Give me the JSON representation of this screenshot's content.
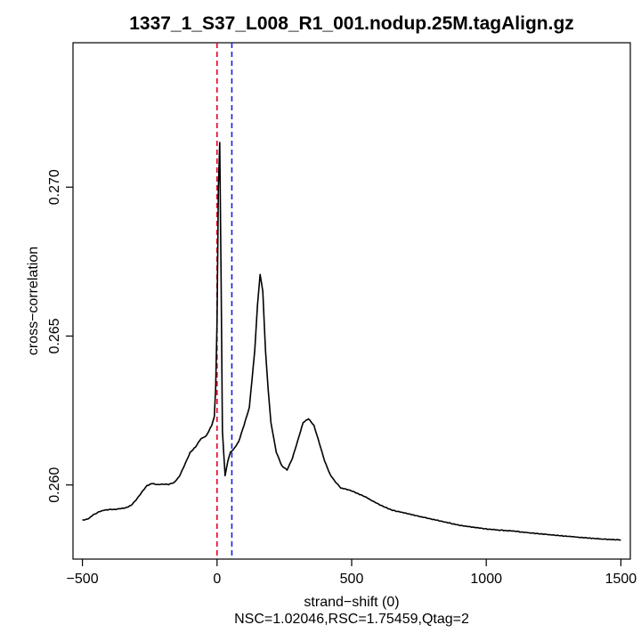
{
  "chart_data": {
    "type": "line",
    "title": "1337_1_S37_L008_R1_001.nodup.25M.tagAlign.gz",
    "xlabel": "strand−shift (0)",
    "subtitle": "NSC=1.02046,RSC=1.75459,Qtag=2",
    "ylabel": "cross−correlation",
    "xlim": [
      -535,
      1535
    ],
    "ylim": [
      0.25751,
      0.27485
    ],
    "x_ticks": [
      -500,
      0,
      500,
      1000,
      1500
    ],
    "x_tick_labels": [
      "−500",
      "0",
      "500",
      "1000",
      "1500"
    ],
    "y_ticks": [
      0.26,
      0.265,
      0.27
    ],
    "y_tick_labels": [
      "0.260",
      "0.265",
      "0.270"
    ],
    "vlines": [
      {
        "name": "red-dashed-line",
        "x": 0,
        "color": "#e8001c",
        "style": "dashed"
      },
      {
        "name": "blue-dashed-line",
        "x": 55,
        "color": "#1c1ce6",
        "style": "dashed"
      }
    ],
    "series": [
      {
        "name": "cross-correlation",
        "color": "#000000",
        "x": [
          -500,
          -480,
          -460,
          -440,
          -420,
          -400,
          -380,
          -360,
          -340,
          -320,
          -300,
          -280,
          -260,
          -240,
          -220,
          -200,
          -180,
          -160,
          -140,
          -120,
          -100,
          -80,
          -60,
          -40,
          -20,
          -10,
          -5,
          0,
          5,
          10,
          15,
          20,
          30,
          40,
          50,
          60,
          80,
          100,
          120,
          140,
          150,
          160,
          170,
          180,
          190,
          200,
          220,
          240,
          260,
          280,
          300,
          320,
          340,
          360,
          380,
          400,
          420,
          440,
          460,
          480,
          500,
          550,
          600,
          650,
          700,
          750,
          800,
          850,
          900,
          950,
          1000,
          1050,
          1100,
          1150,
          1200,
          1250,
          1300,
          1350,
          1400,
          1450,
          1500
        ],
        "values": [
          0.25882,
          0.25886,
          0.25899,
          0.25909,
          0.25915,
          0.25917,
          0.25918,
          0.2592,
          0.25923,
          0.25931,
          0.2595,
          0.25975,
          0.25998,
          0.26005,
          0.26001,
          0.26003,
          0.26002,
          0.26008,
          0.26029,
          0.26068,
          0.26109,
          0.26128,
          0.26155,
          0.26165,
          0.262,
          0.2623,
          0.2633,
          0.2655,
          0.27,
          0.2715,
          0.267,
          0.2618,
          0.2603,
          0.2608,
          0.2611,
          0.26118,
          0.26144,
          0.262,
          0.2626,
          0.2645,
          0.266,
          0.26707,
          0.2665,
          0.2645,
          0.2632,
          0.2621,
          0.2611,
          0.26065,
          0.2605,
          0.2609,
          0.2615,
          0.2621,
          0.26222,
          0.262,
          0.2614,
          0.2608,
          0.26035,
          0.2601,
          0.2599,
          0.25985,
          0.2598,
          0.2596,
          0.25935,
          0.25915,
          0.25905,
          0.25895,
          0.25885,
          0.25875,
          0.25865,
          0.25858,
          0.25852,
          0.25848,
          0.25845,
          0.2584,
          0.25836,
          0.25832,
          0.25828,
          0.25824,
          0.2582,
          0.25817,
          0.25815
        ]
      }
    ]
  }
}
